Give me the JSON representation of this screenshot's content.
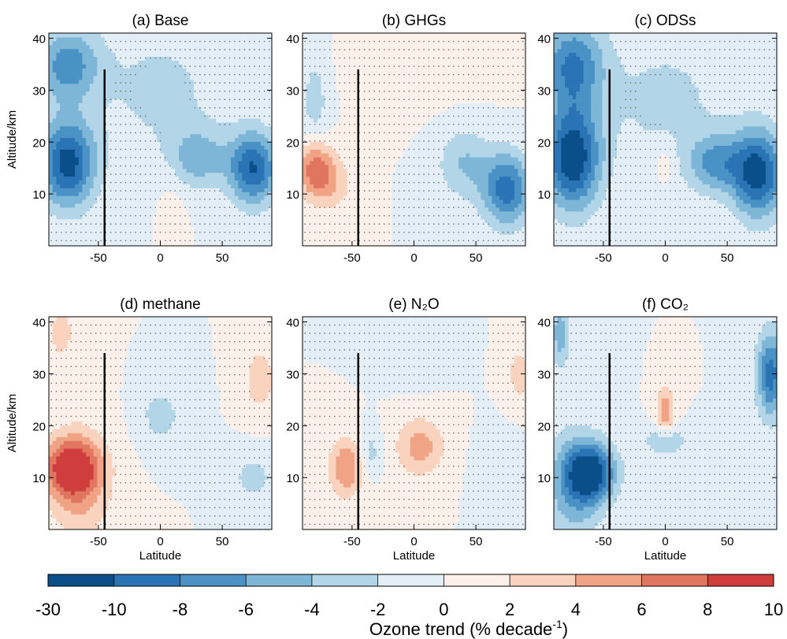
{
  "chart_data": {
    "type": "heatmap",
    "panels": [
      {
        "id": "a",
        "title": "(a) Base",
        "ylabel": "Altitude/km",
        "xlabel": "",
        "features": [
          {
            "lat": -75,
            "alt": 16,
            "value": -11,
            "slat": 16,
            "salt": 6
          },
          {
            "lat": -75,
            "alt": 35,
            "value": -7,
            "slat": 18,
            "salt": 5
          },
          {
            "lat": 75,
            "alt": 15,
            "value": -10,
            "slat": 14,
            "salt": 5
          },
          {
            "lat": 30,
            "alt": 17,
            "value": -5,
            "slat": 16,
            "salt": 4
          },
          {
            "lat": 0,
            "alt": 30,
            "value": -2.5,
            "slat": 40,
            "salt": 10
          },
          {
            "lat": 10,
            "alt": 10,
            "value": 1,
            "slat": 8,
            "salt": 6
          }
        ]
      },
      {
        "id": "b",
        "title": "(b) GHGs",
        "ylabel": "",
        "xlabel": "",
        "features": [
          {
            "lat": -80,
            "alt": 15,
            "value": 7,
            "slat": 10,
            "salt": 4
          },
          {
            "lat": -65,
            "alt": 12,
            "value": 3,
            "slat": 12,
            "salt": 4
          },
          {
            "lat": 75,
            "alt": 11,
            "value": -9,
            "slat": 14,
            "salt": 5
          },
          {
            "lat": 40,
            "alt": 16,
            "value": -4,
            "slat": 15,
            "salt": 5
          },
          {
            "lat": -80,
            "alt": 28,
            "value": -3,
            "slat": 8,
            "salt": 7
          },
          {
            "lat": 0,
            "alt": 35,
            "value": 1,
            "slat": 40,
            "salt": 6
          }
        ]
      },
      {
        "id": "c",
        "title": "(c) ODSs",
        "ylabel": "",
        "xlabel": "",
        "features": [
          {
            "lat": -75,
            "alt": 17,
            "value": -12,
            "slat": 16,
            "salt": 7
          },
          {
            "lat": -75,
            "alt": 35,
            "value": -8,
            "slat": 18,
            "salt": 6
          },
          {
            "lat": 75,
            "alt": 14,
            "value": -11,
            "slat": 15,
            "salt": 6
          },
          {
            "lat": 40,
            "alt": 16,
            "value": -6,
            "slat": 16,
            "salt": 4
          },
          {
            "lat": 0,
            "alt": 28,
            "value": -2.5,
            "slat": 40,
            "salt": 10
          },
          {
            "lat": 0,
            "alt": 16,
            "value": 2,
            "slat": 6,
            "salt": 3
          }
        ]
      },
      {
        "id": "d",
        "title": "(d) methane",
        "ylabel": "Altitude/km",
        "xlabel": "Latitude",
        "features": [
          {
            "lat": -72,
            "alt": 12,
            "value": 9,
            "slat": 16,
            "salt": 4
          },
          {
            "lat": -65,
            "alt": 8,
            "value": 4,
            "slat": 18,
            "salt": 8
          },
          {
            "lat": 80,
            "alt": 29,
            "value": 4,
            "slat": 8,
            "salt": 4
          },
          {
            "lat": 0,
            "alt": 22,
            "value": -3,
            "slat": 12,
            "salt": 4
          },
          {
            "lat": 75,
            "alt": 10,
            "value": -3,
            "slat": 12,
            "salt": 3
          },
          {
            "lat": -80,
            "alt": 38,
            "value": 3,
            "slat": 8,
            "salt": 4
          }
        ]
      },
      {
        "id": "e",
        "title": "(e) N₂O",
        "ylabel": "",
        "xlabel": "Latitude",
        "features": [
          {
            "lat": -55,
            "alt": 12,
            "value": 6,
            "slat": 10,
            "salt": 4
          },
          {
            "lat": 5,
            "alt": 16,
            "value": 5,
            "slat": 14,
            "salt": 4
          },
          {
            "lat": -35,
            "alt": 15,
            "value": -3,
            "slat": 6,
            "salt": 3
          },
          {
            "lat": 0,
            "alt": 35,
            "value": -2,
            "slat": 15,
            "salt": 4
          },
          {
            "lat": 85,
            "alt": 30,
            "value": 3,
            "slat": 7,
            "salt": 4
          },
          {
            "lat": 70,
            "alt": 12,
            "value": -2,
            "slat": 12,
            "salt": 4
          }
        ]
      },
      {
        "id": "f",
        "title": "(f) CO₂",
        "ylabel": "",
        "xlabel": "Latitude",
        "features": [
          {
            "lat": -60,
            "alt": 11,
            "value": -11,
            "slat": 14,
            "salt": 4
          },
          {
            "lat": -75,
            "alt": 8,
            "value": -5,
            "slat": 16,
            "salt": 8
          },
          {
            "lat": 85,
            "alt": 30,
            "value": -9,
            "slat": 8,
            "salt": 6
          },
          {
            "lat": 0,
            "alt": 23,
            "value": 6,
            "slat": 5,
            "salt": 3
          },
          {
            "lat": 0,
            "alt": 17,
            "value": -4,
            "slat": 12,
            "salt": 2
          },
          {
            "lat": -85,
            "alt": 38,
            "value": -5,
            "slat": 6,
            "salt": 5
          }
        ]
      }
    ],
    "x_axis": {
      "range": [
        -90,
        90
      ],
      "ticks": [
        -50,
        0,
        50
      ]
    },
    "y_axis": {
      "range": [
        0,
        41
      ],
      "ticks": [
        10,
        20,
        30,
        40
      ]
    },
    "reference_line_latitude": -45,
    "reference_line_top_altitude": 34,
    "colorbar": {
      "label": "Ozone trend (% decade",
      "label_superscript": "-1",
      "label_suffix": ")",
      "tick_labels": [
        "-30",
        "-10",
        "-8",
        "-6",
        "-4",
        "-2",
        "0",
        "2",
        "4",
        "6",
        "8",
        "10"
      ],
      "bounds": [
        -30,
        -10,
        -8,
        -6,
        -4,
        -2,
        0,
        2,
        4,
        6,
        8,
        10
      ],
      "colors": [
        "#0b4f8a",
        "#2a74b5",
        "#4a92c6",
        "#7eb6d8",
        "#b3d5e8",
        "#e3eef6",
        "#fbf0ea",
        "#f9d3bd",
        "#f0a385",
        "#e07560",
        "#cf3e3c"
      ]
    }
  }
}
